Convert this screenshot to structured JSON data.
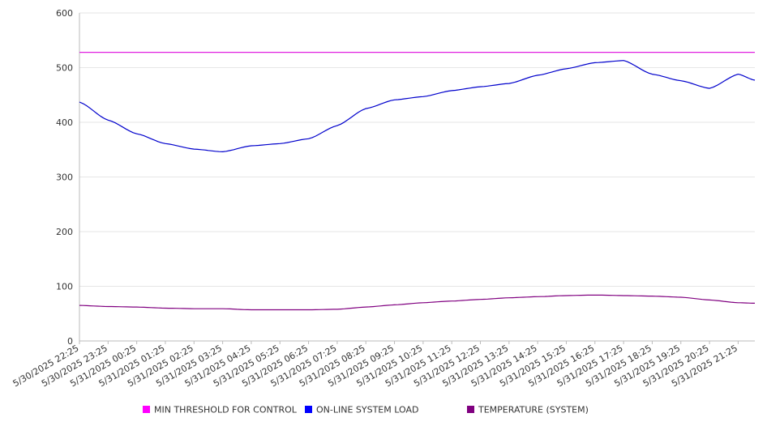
{
  "chart_data": {
    "type": "line",
    "title": "",
    "xlabel": "",
    "ylabel": "",
    "ylim": [
      0,
      600
    ],
    "yticks": [
      0,
      100,
      200,
      300,
      400,
      500,
      600
    ],
    "xlim": [
      "5/30/2025 22:25",
      "5/31/2025 22:00"
    ],
    "grid": true,
    "legend_position": "bottom",
    "x_tick_labels": [
      "5/30/2025 22:25",
      "5/30/2025 23:25",
      "5/31/2025 00:25",
      "5/31/2025 01:25",
      "5/31/2025 02:25",
      "5/31/2025 03:25",
      "5/31/2025 04:25",
      "5/31/2025 05:25",
      "5/31/2025 06:25",
      "5/31/2025 07:25",
      "5/31/2025 08:25",
      "5/31/2025 09:25",
      "5/31/2025 10:25",
      "5/31/2025 11:25",
      "5/31/2025 12:25",
      "5/31/2025 13:25",
      "5/31/2025 14:25",
      "5/31/2025 15:25",
      "5/31/2025 16:25",
      "5/31/2025 17:25",
      "5/31/2025 18:25",
      "5/31/2025 19:25",
      "5/31/2025 20:25",
      "5/31/2025 21:25"
    ],
    "x": [
      "5/30/2025 22:25",
      "5/30/2025 23:25",
      "5/31/2025 00:25",
      "5/31/2025 01:25",
      "5/31/2025 02:25",
      "5/31/2025 03:25",
      "5/31/2025 04:25",
      "5/31/2025 05:25",
      "5/31/2025 06:25",
      "5/31/2025 07:25",
      "5/31/2025 08:25",
      "5/31/2025 09:25",
      "5/31/2025 10:25",
      "5/31/2025 11:25",
      "5/31/2025 12:25",
      "5/31/2025 13:25",
      "5/31/2025 14:25",
      "5/31/2025 15:25",
      "5/31/2025 16:25",
      "5/31/2025 17:25",
      "5/31/2025 18:25",
      "5/31/2025 19:25",
      "5/31/2025 20:25",
      "5/31/2025 21:25",
      "5/31/2025 22:00"
    ],
    "series": [
      {
        "name": "MIN THRESHOLD FOR CONTROL",
        "color": "#e020e0",
        "legend_color": "#ff00ff",
        "values": [
          528,
          528,
          528,
          528,
          528,
          528,
          528,
          528,
          528,
          528,
          528,
          528,
          528,
          528,
          528,
          528,
          528,
          528,
          528,
          528,
          528,
          528,
          528,
          528,
          528
        ]
      },
      {
        "name": "ON-LINE SYSTEM LOAD",
        "color": "#0000cc",
        "legend_color": "#0000ff",
        "values": [
          437,
          404,
          379,
          361,
          351,
          346,
          357,
          361,
          370,
          394,
          425,
          441,
          447,
          458,
          465,
          471,
          486,
          498,
          509,
          513,
          488,
          476,
          462,
          488,
          477
        ]
      },
      {
        "name": "TEMPERATURE (SYSTEM)",
        "color": "#800080",
        "legend_color": "#800080",
        "values": [
          65,
          63,
          62,
          60,
          59,
          59,
          57,
          57,
          57,
          58,
          62,
          66,
          70,
          73,
          76,
          79,
          81,
          83,
          84,
          83,
          82,
          80,
          75,
          70,
          69
        ]
      }
    ]
  }
}
